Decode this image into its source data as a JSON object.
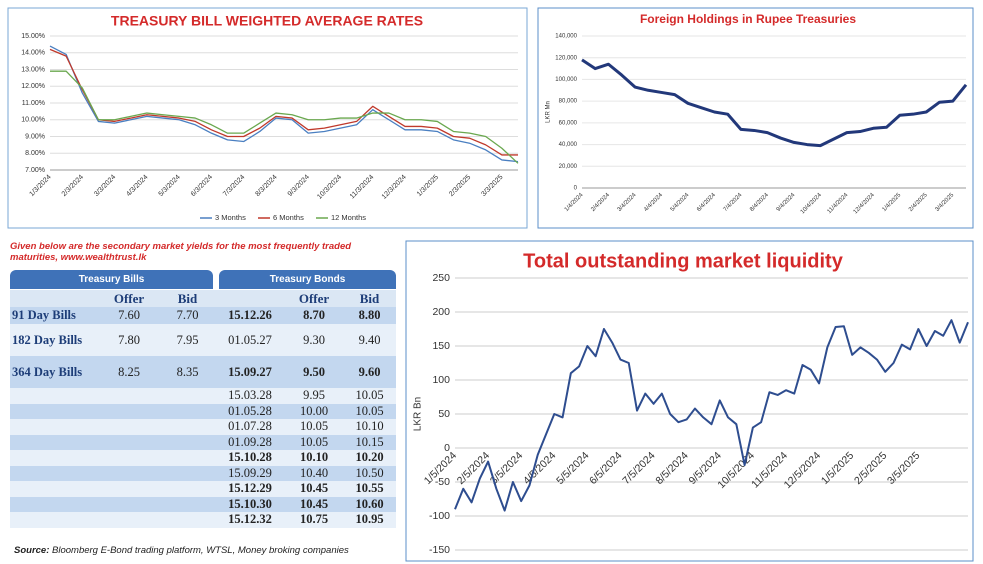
{
  "chart_data": [
    {
      "type": "line",
      "title": "TREASURY BILL WEIGHTED AVERAGE RATES",
      "categories": [
        "1/3/2024",
        null,
        "2/3/2024",
        null,
        "3/3/2024",
        null,
        "4/3/2024",
        null,
        "5/3/2024",
        null,
        "6/3/2024",
        null,
        "7/3/2024",
        null,
        "8/3/2024",
        null,
        "9/3/2024",
        null,
        "10/3/2024",
        null,
        "11/3/2024",
        null,
        "12/3/2024",
        null,
        "1/3/2025",
        null,
        "2/3/2025",
        null,
        "3/3/2025",
        null
      ],
      "series": [
        {
          "name": "3 Months",
          "color": "#4a7fc1",
          "values": [
            14.4,
            13.9,
            11.6,
            9.9,
            9.8,
            10.0,
            10.2,
            10.1,
            10.0,
            9.7,
            9.2,
            8.8,
            8.7,
            9.3,
            10.1,
            10.0,
            9.2,
            9.3,
            9.5,
            9.7,
            10.6,
            10.0,
            9.4,
            9.4,
            9.3,
            8.8,
            8.6,
            8.2,
            7.6,
            7.5
          ]
        },
        {
          "name": "6 Months",
          "color": "#c0392b",
          "values": [
            14.2,
            13.8,
            11.8,
            10.0,
            9.9,
            10.1,
            10.3,
            10.2,
            10.1,
            9.9,
            9.4,
            9.0,
            9.0,
            9.5,
            10.2,
            10.1,
            9.4,
            9.5,
            9.7,
            9.9,
            10.8,
            10.2,
            9.6,
            9.6,
            9.5,
            9.0,
            8.9,
            8.5,
            7.9,
            7.9
          ]
        },
        {
          "name": "12 Months",
          "color": "#6aa84f",
          "values": [
            12.9,
            12.9,
            11.9,
            10.0,
            10.0,
            10.2,
            10.4,
            10.3,
            10.2,
            10.1,
            9.7,
            9.2,
            9.2,
            9.8,
            10.4,
            10.3,
            10.0,
            10.0,
            10.1,
            10.1,
            10.4,
            10.4,
            10.0,
            10.0,
            9.9,
            9.3,
            9.2,
            9.0,
            8.3,
            7.4
          ]
        }
      ],
      "ylim": [
        7,
        15
      ],
      "yticks": [
        {
          "value": 7,
          "label": "7.00%"
        },
        {
          "value": 8,
          "label": "8.00%"
        },
        {
          "value": 9,
          "label": "9.00%"
        },
        {
          "value": 10,
          "label": "10.00%"
        },
        {
          "value": 11,
          "label": "11.00%"
        },
        {
          "value": 12,
          "label": "12.00%"
        },
        {
          "value": 13,
          "label": "13.00%"
        },
        {
          "value": 14,
          "label": "14.00%"
        },
        {
          "value": 15,
          "label": "15.00%"
        }
      ],
      "grid": true,
      "legend": "bottom"
    },
    {
      "type": "line",
      "title": "Foreign Holdings in Rupee Treasuries",
      "y_label": "LKR Mn",
      "categories": [
        "1/4/2024",
        null,
        "2/4/2024",
        null,
        "3/4/2024",
        null,
        "4/4/2024",
        null,
        "5/4/2024",
        null,
        "6/4/2024",
        null,
        "7/4/2024",
        null,
        "8/4/2024",
        null,
        "9/4/2024",
        null,
        "10/4/2024",
        null,
        "11/4/2024",
        null,
        "12/4/2024",
        null,
        "1/4/2025",
        null,
        "2/4/2025",
        null,
        "3/4/2025",
        null
      ],
      "series": [
        {
          "name": "Foreign Holdings",
          "color": "#22387a",
          "values": [
            118000,
            110000,
            114000,
            104000,
            93000,
            90000,
            88000,
            86000,
            78000,
            74000,
            70000,
            68000,
            54000,
            53000,
            51000,
            46000,
            42000,
            40000,
            39000,
            45000,
            51000,
            52000,
            55000,
            56000,
            67000,
            68000,
            70000,
            79000,
            80000,
            95000
          ]
        }
      ],
      "ylim": [
        0,
        140000
      ],
      "yticks": [
        0,
        {
          "value": 20000,
          "label": "20,000"
        },
        {
          "value": 40000,
          "label": "40,000"
        },
        {
          "value": 60000,
          "label": "60,000"
        },
        {
          "value": 80000,
          "label": "80,000"
        },
        {
          "value": 100000,
          "label": "100,000"
        },
        {
          "value": 120000,
          "label": "120,000"
        },
        {
          "value": 140000,
          "label": "140,000"
        }
      ],
      "grid": true
    },
    {
      "type": "line",
      "title": "Total outstanding market liquidity",
      "y_label": "LKR Bn",
      "categories": [
        "1/5/2024",
        null,
        null,
        null,
        "2/5/2024",
        null,
        null,
        null,
        "3/5/2024",
        null,
        null,
        null,
        "4/5/2024",
        null,
        null,
        null,
        "5/5/2024",
        null,
        null,
        null,
        "6/5/2024",
        null,
        null,
        null,
        "7/5/2024",
        null,
        null,
        null,
        "8/5/2024",
        null,
        null,
        null,
        "9/5/2024",
        null,
        null,
        null,
        "10/5/2024",
        null,
        null,
        null,
        "11/5/2024",
        null,
        null,
        null,
        "12/5/2024",
        null,
        null,
        null,
        "1/5/2025",
        null,
        null,
        null,
        "2/5/2025",
        null,
        null,
        null,
        "3/5/2025",
        null,
        null,
        null,
        null,
        null,
        null
      ],
      "series": [
        {
          "name": "Market liquidity",
          "color": "#2e4d8f",
          "values": [
            -90,
            -60,
            -80,
            -45,
            -20,
            -60,
            -92,
            -50,
            -78,
            -55,
            -10,
            20,
            50,
            45,
            110,
            120,
            150,
            135,
            175,
            155,
            130,
            125,
            55,
            80,
            65,
            80,
            50,
            38,
            42,
            58,
            45,
            35,
            70,
            45,
            35,
            -25,
            30,
            38,
            82,
            78,
            85,
            80,
            122,
            115,
            95,
            148,
            178,
            179,
            137,
            148,
            140,
            130,
            112,
            125,
            152,
            145,
            175,
            150,
            172,
            165,
            188,
            155,
            185
          ]
        }
      ],
      "ylim": [
        -150,
        250
      ],
      "yticks": [
        -150,
        -100,
        -50,
        0,
        50,
        100,
        150,
        200,
        250
      ],
      "grid": true
    }
  ],
  "table": {
    "note": "Given below are the secondary market yields for the most frequently traded maturities, www.wealthtrust.lk",
    "headers": [
      "Treasury Bills",
      "Treasury Bonds"
    ],
    "columns": [
      "Offer",
      "Bid",
      "Offer",
      "Bid"
    ],
    "bills": [
      {
        "name": "91 Day Bills",
        "offer": "7.60",
        "bid": "7.70"
      },
      {
        "name": "182 Day Bills",
        "offer": "7.80",
        "bid": "7.95"
      },
      {
        "name": "364 Day Bills",
        "offer": "8.25",
        "bid": "8.35"
      }
    ],
    "bonds": [
      {
        "maturity": "15.12.26",
        "offer": "8.70",
        "bid": "8.80",
        "bold": true
      },
      {
        "maturity": "01.05.27",
        "offer": "9.30",
        "bid": "9.40",
        "bold": false
      },
      {
        "maturity": "15.09.27",
        "offer": "9.50",
        "bid": "9.60",
        "bold": true
      },
      {
        "maturity": "15.03.28",
        "offer": "9.95",
        "bid": "10.05",
        "bold": false
      },
      {
        "maturity": "01.05.28",
        "offer": "10.00",
        "bid": "10.05",
        "bold": false
      },
      {
        "maturity": "01.07.28",
        "offer": "10.05",
        "bid": "10.10",
        "bold": false
      },
      {
        "maturity": "01.09.28",
        "offer": "10.05",
        "bid": "10.15",
        "bold": false
      },
      {
        "maturity": "15.10.28",
        "offer": "10.10",
        "bid": "10.20",
        "bold": true
      },
      {
        "maturity": "15.09.29",
        "offer": "10.40",
        "bid": "10.50",
        "bold": false
      },
      {
        "maturity": "15.12.29",
        "offer": "10.45",
        "bid": "10.55",
        "bold": true
      },
      {
        "maturity": "15.10.30",
        "offer": "10.45",
        "bid": "10.60",
        "bold": true
      },
      {
        "maturity": "15.12.32",
        "offer": "10.75",
        "bid": "10.95",
        "bold": true
      }
    ],
    "source_label": "Source:",
    "source": "Bloomberg E-Bond trading platform, WTSL, Money broking companies"
  }
}
